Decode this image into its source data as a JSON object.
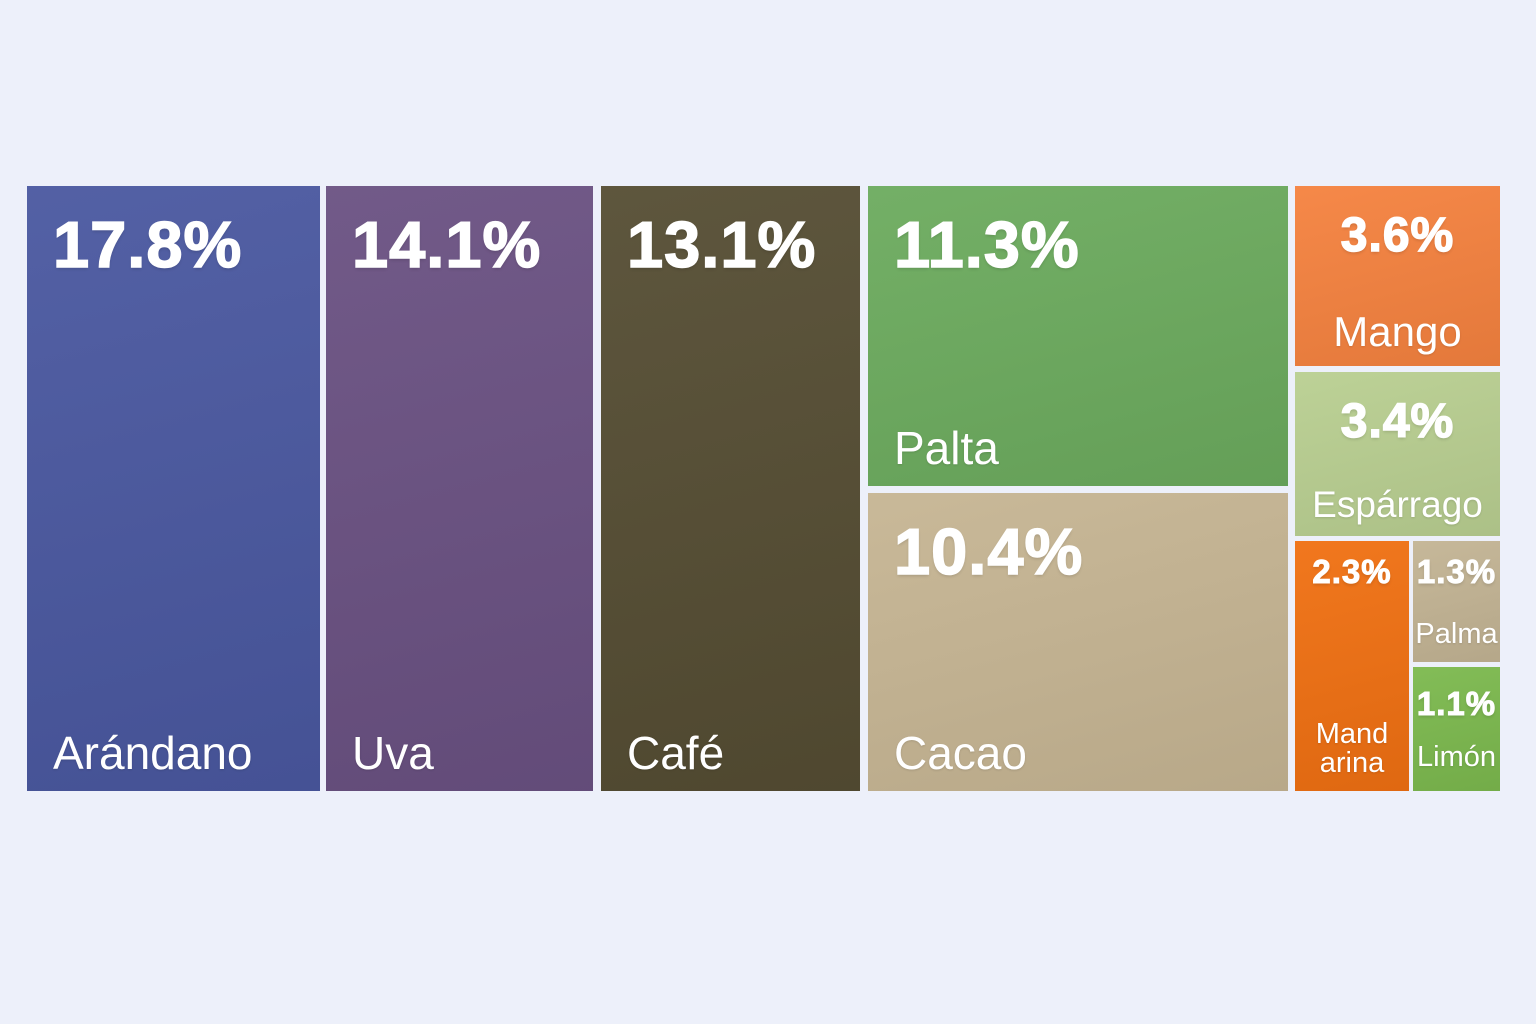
{
  "chart_data": {
    "type": "treemap",
    "title": "",
    "unit": "%",
    "background": "#edf0fa",
    "text_color": "#ffffff",
    "legend": "none",
    "items": [
      {
        "label": "Arándano",
        "value": 17.8,
        "pct_label": "17.8%",
        "color": "#4a58a0"
      },
      {
        "label": "Uva",
        "value": 14.1,
        "pct_label": "14.1%",
        "color": "#6a5182"
      },
      {
        "label": "Café",
        "value": 13.1,
        "pct_label": "13.1%",
        "color": "#554d33"
      },
      {
        "label": "Palta",
        "value": 11.3,
        "pct_label": "11.3%",
        "color": "#6cab5e"
      },
      {
        "label": "Cacao",
        "value": 10.4,
        "pct_label": "10.4%",
        "color": "#c6b593"
      },
      {
        "label": "Mango",
        "value": 3.6,
        "pct_label": "3.6%",
        "color": "#f5823f"
      },
      {
        "label": "Espárrago",
        "value": 3.4,
        "pct_label": "3.4%",
        "color": "#b9cf91"
      },
      {
        "label": "Mandarina",
        "value": 2.3,
        "pct_label": "2.3%",
        "color": "#f07012",
        "label_lines": [
          "Mand",
          "arina"
        ]
      },
      {
        "label": "Palma",
        "value": 1.3,
        "pct_label": "1.3%",
        "color": "#c3b494"
      },
      {
        "label": "Limón",
        "value": 1.1,
        "pct_label": "1.1%",
        "color": "#7cb94e"
      }
    ]
  }
}
